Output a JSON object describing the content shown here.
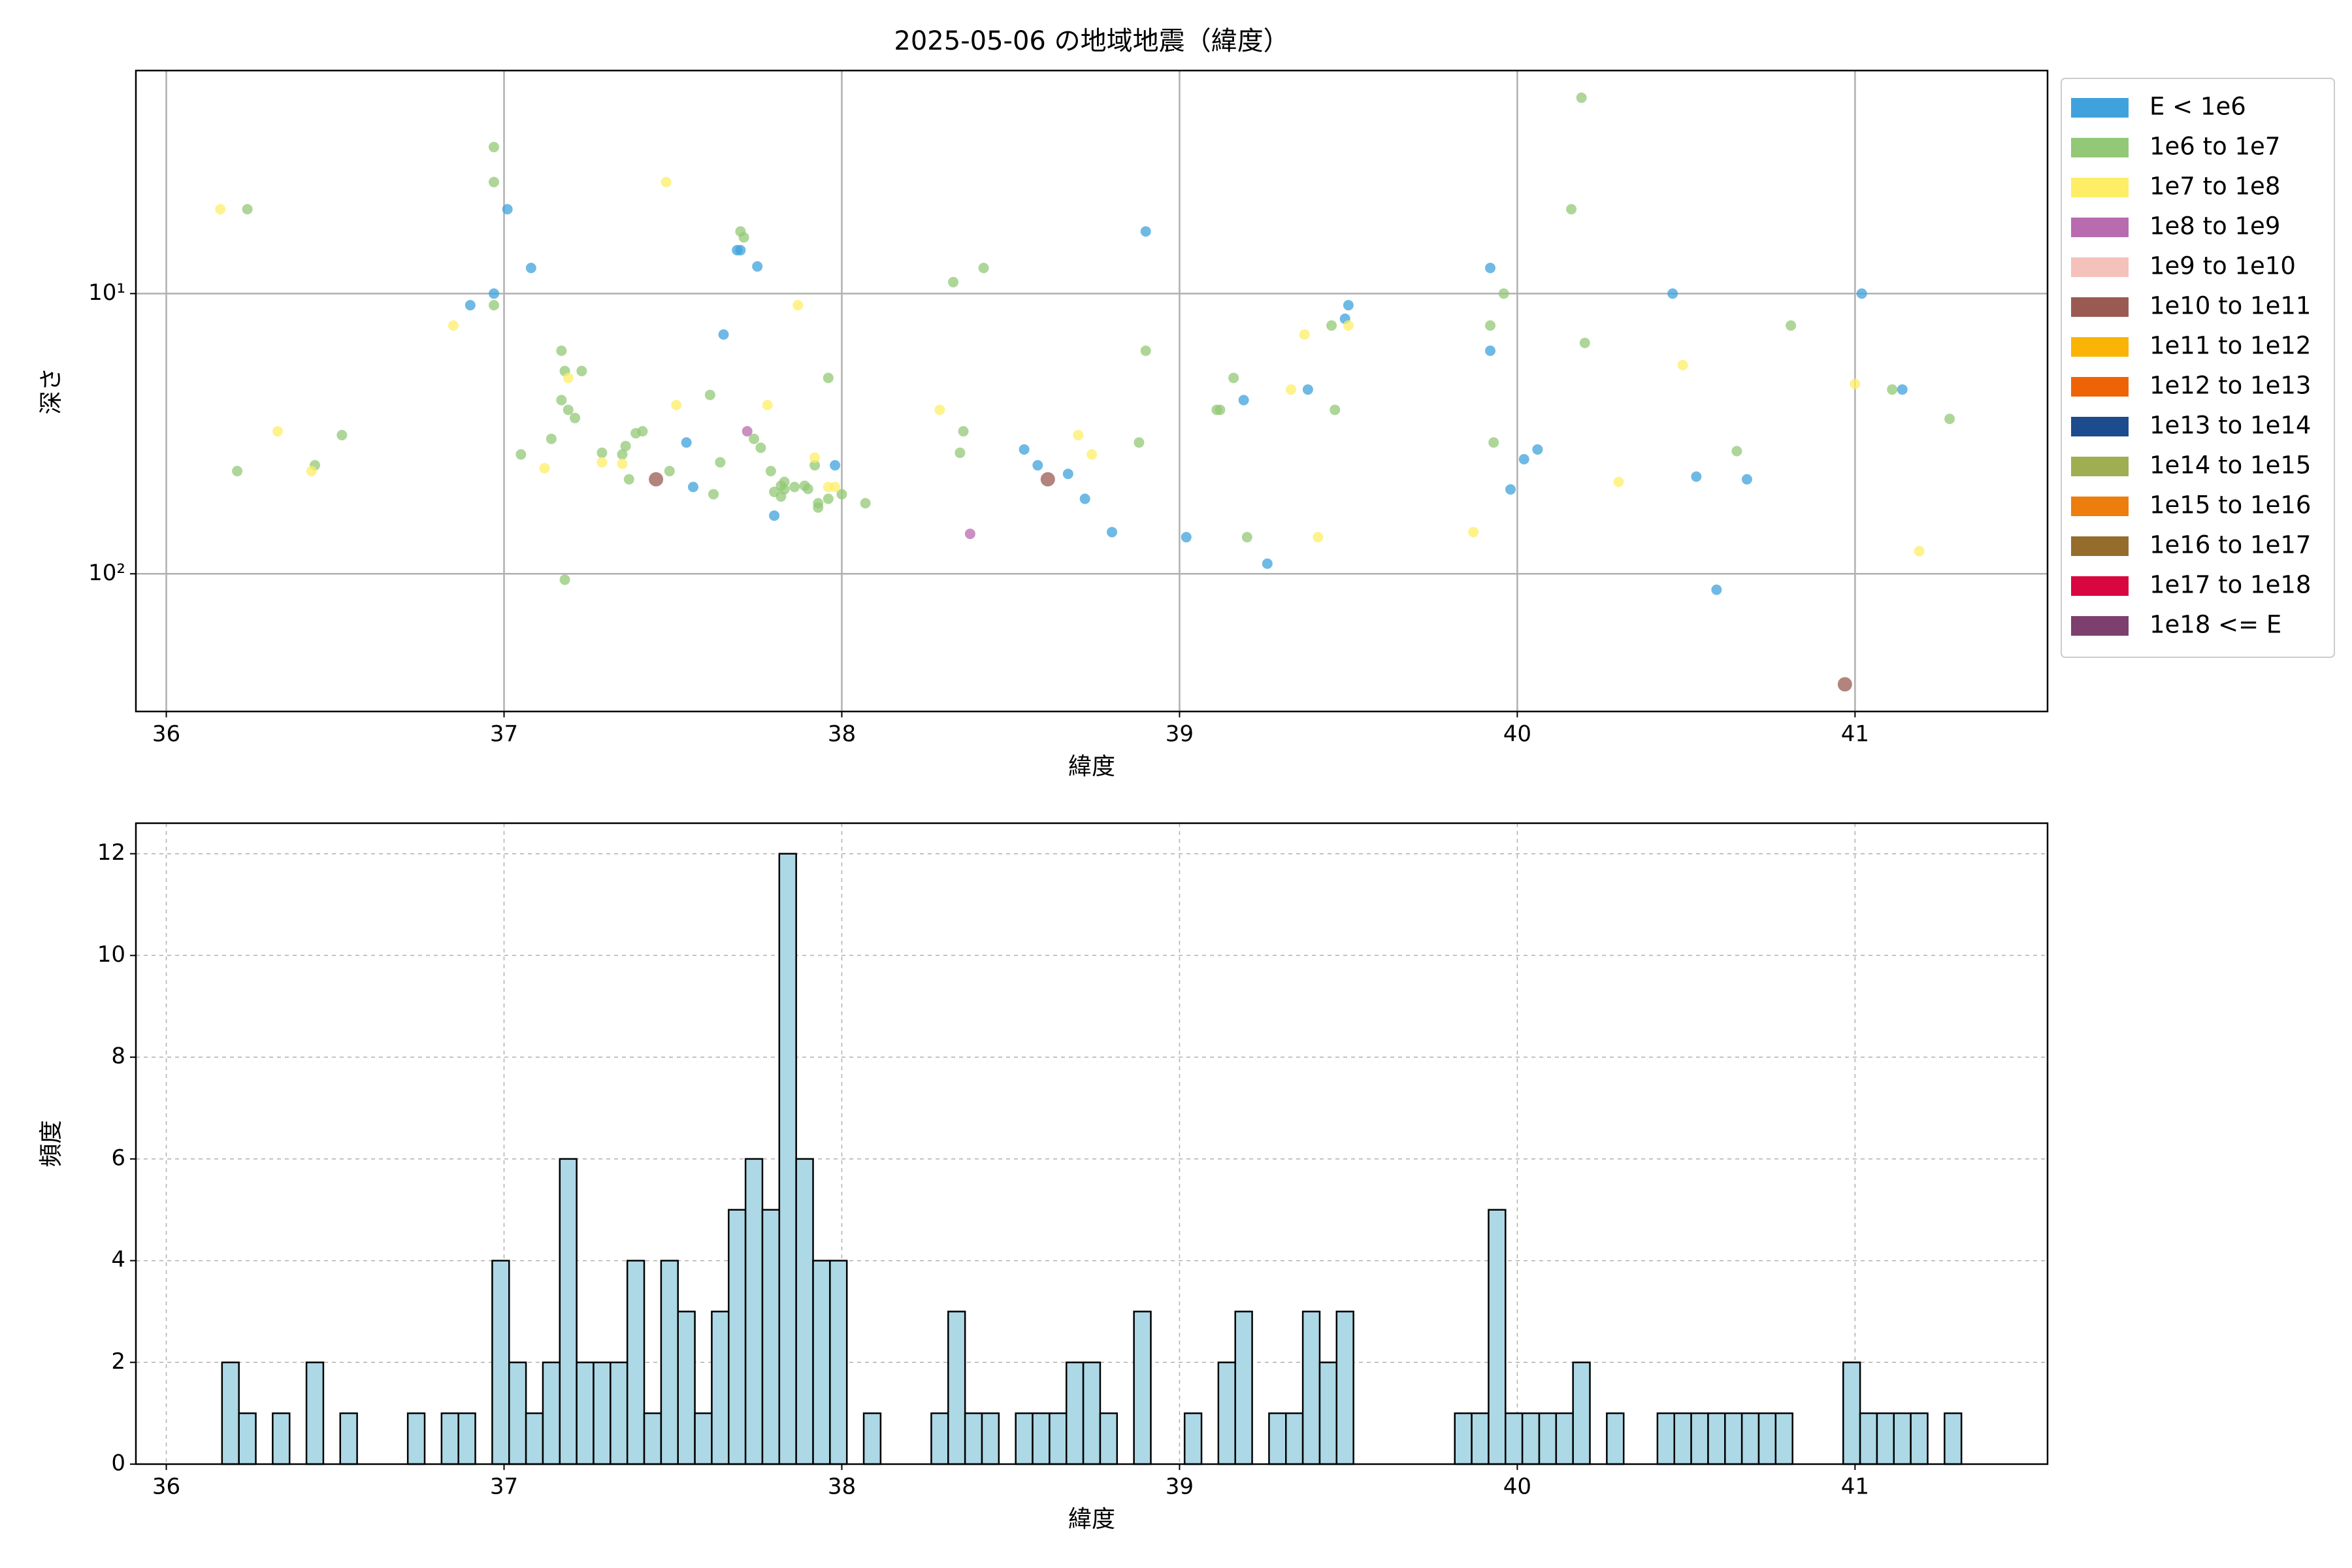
{
  "chart_data": [
    {
      "type": "scatter",
      "title": "2025-05-06 の地域地震（緯度）",
      "xlabel": "緯度",
      "ylabel": "深さ",
      "xlim": [
        35.91,
        41.57
      ],
      "xticks": [
        36,
        37,
        38,
        39,
        40,
        41
      ],
      "ylim": [
        1.6,
        310
      ],
      "yscale": "log",
      "y_inverted": true,
      "yticks": [
        {
          "value": 10,
          "label": "10¹"
        },
        {
          "value": 100,
          "label": "10²"
        }
      ],
      "grid": "solid",
      "legend": "outside upper right",
      "series": [
        {
          "name": "E < 1e6",
          "color": "#3fa2dc",
          "x": [
            37.01,
            37.08,
            36.97,
            36.9,
            37.69,
            37.7,
            37.75,
            37.65,
            37.54,
            37.56,
            37.8,
            37.98,
            38.9,
            38.54,
            38.58,
            38.67,
            38.72,
            38.8,
            39.02,
            39.19,
            39.38,
            39.26,
            39.5,
            39.49,
            39.92,
            39.92,
            39.98,
            40.02,
            40.06,
            40.46,
            40.53,
            40.68,
            40.59,
            41.02,
            41.14
          ],
          "y": [
            5.0,
            8.1,
            10,
            11,
            7.0,
            7.0,
            8.0,
            14,
            34,
            49,
            62,
            41,
            6.0,
            36,
            41,
            44,
            54,
            71,
            74,
            24,
            22,
            92,
            11,
            12.3,
            8.1,
            16,
            50,
            39,
            36,
            10,
            45,
            46,
            114,
            10,
            22
          ]
        },
        {
          "name": "1e6 to 1e7",
          "color": "#93c876",
          "x": [
            36.24,
            36.97,
            36.97,
            36.97,
            36.21,
            36.44,
            36.52,
            37.05,
            37.17,
            37.18,
            37.23,
            37.17,
            37.19,
            37.21,
            37.14,
            37.29,
            37.36,
            37.35,
            37.39,
            37.41,
            37.37,
            37.49,
            37.18,
            37.7,
            37.71,
            37.61,
            37.64,
            37.62,
            37.74,
            37.76,
            37.79,
            37.8,
            37.82,
            37.83,
            37.83,
            37.82,
            37.86,
            37.89,
            37.9,
            37.93,
            37.93,
            37.96,
            37.92,
            37.96,
            38.0,
            38.07,
            38.33,
            38.42,
            38.36,
            38.35,
            38.9,
            38.88,
            39.16,
            39.11,
            39.12,
            39.2,
            39.45,
            39.46,
            39.96,
            39.92,
            39.93,
            40.19,
            40.16,
            40.2,
            40.81,
            40.65,
            41.11,
            41.28
          ],
          "y": [
            5.0,
            3.0,
            4.0,
            11,
            43,
            41,
            32,
            37.5,
            16,
            18.9,
            18.9,
            24,
            26,
            27.8,
            33,
            37,
            35,
            37.5,
            31.5,
            31,
            46,
            43,
            105,
            6.0,
            6.3,
            23,
            40,
            52,
            33,
            35.5,
            43,
            51,
            48.5,
            47,
            50,
            53,
            49,
            48.5,
            49.8,
            56,
            58,
            54,
            41,
            20,
            52,
            56,
            9.1,
            8.1,
            31,
            37,
            16,
            34,
            20,
            26,
            26,
            74,
            13,
            26,
            10,
            13,
            34,
            2.0,
            5.0,
            15,
            13,
            36.5,
            22,
            28
          ]
        },
        {
          "name": "1e7 to 1e8",
          "color": "#fdee65",
          "x": [
            36.16,
            36.85,
            36.33,
            36.43,
            37.19,
            37.12,
            37.29,
            37.35,
            37.48,
            37.51,
            37.78,
            37.87,
            37.92,
            37.96,
            37.98,
            38.29,
            38.7,
            38.74,
            39.37,
            39.33,
            39.41,
            39.5,
            39.87,
            40.3,
            40.49,
            41.0,
            41.19
          ],
          "y": [
            5.0,
            13,
            31,
            43,
            20,
            42,
            40,
            40.5,
            4.0,
            25,
            25,
            11,
            38.5,
            49,
            49,
            26,
            32,
            37.5,
            14,
            22,
            74,
            13,
            71,
            47,
            18,
            21,
            83
          ]
        },
        {
          "name": "1e8 to 1e9",
          "color": "#b86bae",
          "x": [
            37.72,
            38.38
          ],
          "y": [
            31,
            72
          ]
        },
        {
          "name": "1e9 to 1e10",
          "color": "#f4c1bb",
          "x": [],
          "y": []
        },
        {
          "name": "1e10 to 1e11",
          "color": "#9a5a52",
          "x": [
            37.45,
            38.61,
            40.97
          ],
          "y": [
            46,
            46,
            248
          ]
        },
        {
          "name": "1e11 to 1e12",
          "color": "#fab405",
          "x": [],
          "y": []
        },
        {
          "name": "1e12 to 1e13",
          "color": "#ef6307",
          "x": [],
          "y": []
        },
        {
          "name": "1e13 to 1e14",
          "color": "#1c4b8e",
          "x": [],
          "y": []
        },
        {
          "name": "1e14 to 1e15",
          "color": "#9eae51",
          "x": [],
          "y": []
        },
        {
          "name": "1e15 to 1e16",
          "color": "#ed7d0c",
          "x": [],
          "y": []
        },
        {
          "name": "1e16 to 1e17",
          "color": "#946c2c",
          "x": [],
          "y": []
        },
        {
          "name": "1e17 to 1e18",
          "color": "#d90740",
          "x": [],
          "y": []
        },
        {
          "name": "1e18 <= E",
          "color": "#7c3f6e",
          "x": [],
          "y": []
        }
      ]
    },
    {
      "type": "histogram",
      "xlabel": "緯度",
      "ylabel": "頻度",
      "xlim": [
        35.91,
        41.57
      ],
      "xticks": [
        36,
        37,
        38,
        39,
        40,
        41
      ],
      "ylim": [
        0,
        12.6
      ],
      "yticks": [
        0,
        2,
        4,
        6,
        8,
        10,
        12
      ],
      "grid": "dashed",
      "color": "#add8e6",
      "edgecolor": "#000000",
      "bins": [
        36.165,
        36.215,
        36.265,
        36.315,
        36.365,
        36.415,
        36.465,
        36.515,
        36.565,
        36.615,
        36.665,
        36.715,
        36.765,
        36.815,
        36.865,
        36.915,
        36.965,
        37.015,
        37.065,
        37.115,
        37.165,
        37.215,
        37.265,
        37.315,
        37.365,
        37.415,
        37.465,
        37.515,
        37.565,
        37.615,
        37.665,
        37.715,
        37.765,
        37.815,
        37.865,
        37.915,
        37.965,
        38.015,
        38.065,
        38.115,
        38.165,
        38.215,
        38.265,
        38.315,
        38.365,
        38.415,
        38.465,
        38.515,
        38.565,
        38.615,
        38.665,
        38.715,
        38.765,
        38.815,
        38.865,
        38.915,
        38.965,
        39.015,
        39.065,
        39.115,
        39.165,
        39.215,
        39.265,
        39.315,
        39.365,
        39.415,
        39.465,
        39.515,
        39.565,
        39.615,
        39.665,
        39.715,
        39.765,
        39.815,
        39.865,
        39.915,
        39.965,
        40.015,
        40.065,
        40.115,
        40.165,
        40.215,
        40.265,
        40.315,
        40.365,
        40.415,
        40.465,
        40.515,
        40.565,
        40.615,
        40.665,
        40.715,
        40.765,
        40.815,
        40.865,
        40.915,
        40.965,
        41.015,
        41.065,
        41.115,
        41.165,
        41.215,
        41.265,
        41.315
      ],
      "counts": [
        2,
        1,
        0,
        1,
        0,
        2,
        0,
        1,
        0,
        0,
        0,
        1,
        0,
        1,
        1,
        0,
        4,
        2,
        1,
        2,
        6,
        2,
        2,
        2,
        4,
        1,
        4,
        3,
        1,
        3,
        5,
        6,
        5,
        12,
        6,
        4,
        4,
        0,
        1,
        0,
        0,
        0,
        1,
        3,
        1,
        1,
        0,
        1,
        1,
        1,
        2,
        2,
        1,
        0,
        3,
        0,
        0,
        1,
        0,
        2,
        3,
        0,
        1,
        1,
        3,
        2,
        3,
        0,
        0,
        0,
        0,
        0,
        0,
        1,
        1,
        5,
        1,
        1,
        1,
        1,
        2,
        0,
        1,
        0,
        0,
        1,
        1,
        1,
        1,
        1,
        1,
        1,
        1,
        0,
        0,
        0,
        2,
        1,
        1,
        1,
        1,
        0,
        1
      ]
    }
  ]
}
